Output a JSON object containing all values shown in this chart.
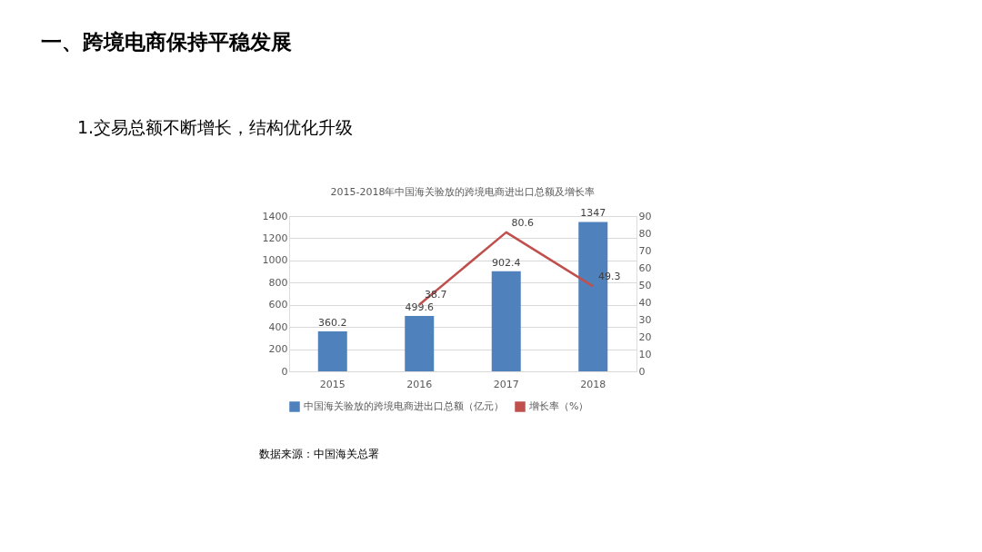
{
  "chart_data": {
    "type": "bar",
    "title": "2015-2018年中国海关验放的跨境电商进出口总额及增长率",
    "categories": [
      "2015",
      "2016",
      "2017",
      "2018"
    ],
    "series": [
      {
        "name": "中国海关验放的跨境电商进出口总额（亿元）",
        "color": "#4f81bd",
        "values": [
          360.2,
          499.6,
          902.4,
          1347
        ]
      },
      {
        "name": "增长率（%）",
        "type": "line",
        "axis": "y2",
        "color": "#c0504d",
        "values": [
          null,
          38.7,
          80.6,
          49.3
        ]
      }
    ],
    "ylim": [
      0,
      1400
    ],
    "yticks": [
      0,
      200,
      400,
      600,
      800,
      1000,
      1200,
      1400
    ],
    "y2lim": [
      0,
      90
    ],
    "y2ticks": [
      0,
      10,
      20,
      30,
      40,
      50,
      60,
      70,
      80,
      90
    ],
    "grid": "y",
    "legend": "bottom",
    "data_labels": true,
    "marker": "none",
    "line_style": "solid",
    "annotations": [
      "一、跨境电商保持平稳发展",
      "1.交易总额不断增长，结构优化升级",
      "数据来源：中国海关总署"
    ]
  }
}
